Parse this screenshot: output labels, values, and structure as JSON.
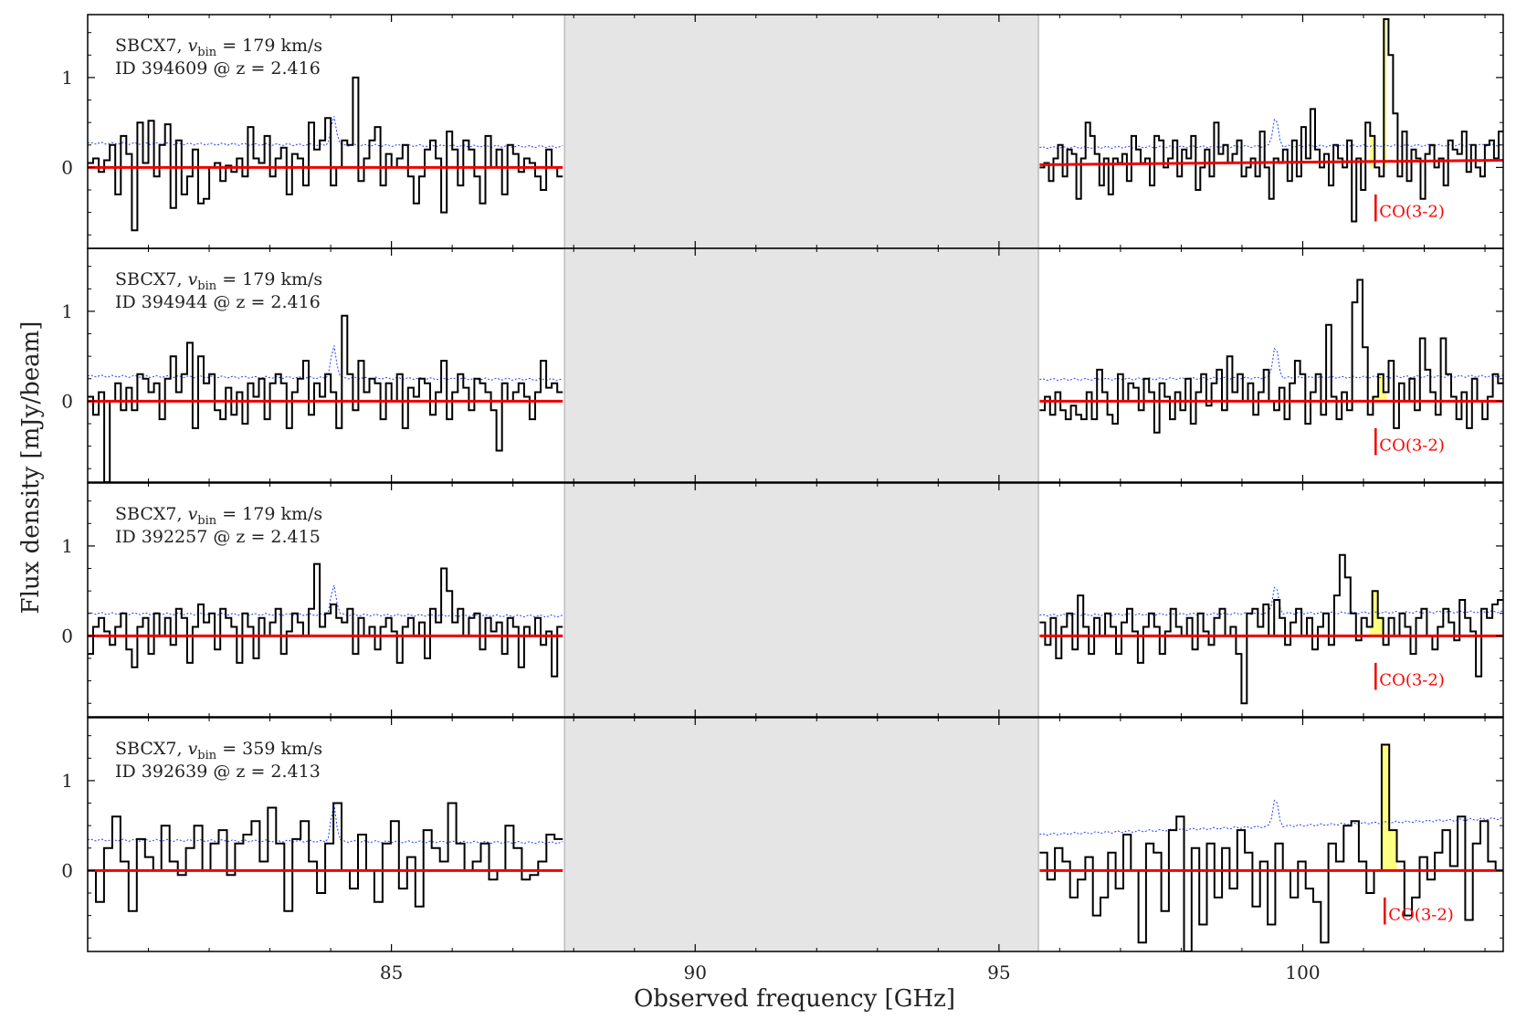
{
  "chart_data": {
    "type": "line",
    "xlabel": "Observed frequency [GHz]",
    "ylabel": "Flux density [mJy/beam]",
    "xlim": [
      80.0,
      103.3
    ],
    "ylim": [
      -0.9,
      1.7
    ],
    "xticks": [
      85,
      90,
      95,
      100
    ],
    "yticks": [
      0,
      1
    ],
    "gap_band": [
      87.85,
      95.65
    ],
    "co_label": "CO(3-2)",
    "colors": {
      "spectrum": "#000000",
      "noise": "#1f3fff",
      "baseline": "#ee0000",
      "line_fill": "#ffff80",
      "gap": "#e5e5e5"
    },
    "panels": [
      {
        "name_pre": "SBCX7, ",
        "vbin_sym": "v",
        "vbin_sub": "bin",
        "vbin_val": " = 179 km/s",
        "id_text": "ID 394609 @ z = 2.416",
        "co_freq": 101.2,
        "line_fill": [
          101.1,
          101.38
        ],
        "baseline_left": [
          0.0,
          0.0
        ],
        "baseline_right": [
          0.03,
          0.08
        ],
        "noise_left": [
          0.27,
          0.23
        ],
        "noise_right": [
          0.22,
          0.25
        ],
        "noise_bump": 0.55,
        "left": [
          0.05,
          0.1,
          -0.05,
          0.08,
          0.25,
          -0.3,
          0.35,
          0.15,
          -0.7,
          0.5,
          0.05,
          0.52,
          -0.1,
          0.25,
          0.48,
          -0.45,
          0.3,
          -0.3,
          -0.1,
          0.2,
          -0.4,
          -0.35,
          0.0,
          0.05,
          -0.15,
          0.02,
          -0.05,
          0.1,
          -0.1,
          0.45,
          0.1,
          0.05,
          0.35,
          -0.1,
          0.1,
          0.22,
          -0.3,
          0.15,
          0.1,
          -0.2,
          0.5,
          0.2,
          0.3,
          0.55,
          -0.2,
          0.0,
          0.3,
          0.25,
          1.0,
          -0.15,
          0.1,
          0.3,
          0.45,
          -0.2,
          0.15,
          0.0,
          0.1,
          0.25,
          -0.1,
          -0.4,
          -0.1,
          0.2,
          0.3,
          0.1,
          -0.5,
          0.4,
          0.2,
          -0.2,
          0.3,
          0.2,
          -0.1,
          -0.4,
          0.35,
          0.0,
          0.2,
          -0.3,
          0.25,
          0.15,
          -0.05,
          0.1,
          0.05,
          -0.1,
          -0.25,
          0.2,
          0.0,
          -0.1
        ],
        "right": [
          0.0,
          0.05,
          -0.15,
          0.1,
          0.25,
          -0.1,
          0.2,
          0.15,
          -0.35,
          0.1,
          0.5,
          0.35,
          0.15,
          -0.2,
          0.1,
          -0.3,
          0.1,
          0.05,
          0.15,
          -0.15,
          0.35,
          0.2,
          0.05,
          0.1,
          -0.2,
          0.35,
          0.3,
          0.0,
          0.1,
          0.3,
          -0.1,
          0.2,
          0.1,
          0.35,
          -0.25,
          0.0,
          0.2,
          -0.1,
          0.5,
          0.15,
          0.25,
          0.05,
          0.15,
          0.3,
          -0.1,
          0.0,
          0.1,
          -0.1,
          0.4,
          0.0,
          -0.35,
          0.1,
          0.05,
          0.2,
          -0.15,
          0.3,
          -0.1,
          0.45,
          0.1,
          0.65,
          0.2,
          0.0,
          0.15,
          -0.2,
          0.25,
          0.1,
          0.0,
          0.3,
          -0.6,
          0.1,
          -0.25,
          0.5,
          0.35,
          0.0,
          -0.1,
          1.65,
          1.25,
          0.6,
          -0.1,
          0.4,
          -0.15,
          0.2,
          0.1,
          -0.35,
          0.15,
          0.25,
          0.0,
          0.1,
          -0.2,
          0.3,
          0.2,
          0.15,
          0.4,
          -0.05,
          0.25,
          0.0,
          -0.1,
          0.25,
          0.3,
          0.1,
          0.4
        ]
      },
      {
        "name_pre": "SBCX7, ",
        "vbin_sym": "v",
        "vbin_sub": "bin",
        "vbin_val": " = 179 km/s",
        "id_text": "ID 394944 @ z = 2.416",
        "co_freq": 101.2,
        "line_fill": [
          101.1,
          101.38
        ],
        "baseline_left": [
          0.0,
          0.0
        ],
        "baseline_right": [
          0.0,
          0.0
        ],
        "noise_left": [
          0.28,
          0.24
        ],
        "noise_right": [
          0.24,
          0.28
        ],
        "noise_bump": 0.6,
        "left": [
          0.05,
          -0.15,
          0.1,
          -0.9,
          0.0,
          0.2,
          -0.1,
          0.15,
          -0.1,
          0.3,
          0.25,
          0.1,
          0.2,
          -0.2,
          0.25,
          0.5,
          0.1,
          0.3,
          0.65,
          -0.3,
          0.5,
          0.2,
          0.3,
          -0.1,
          -0.2,
          0.15,
          -0.15,
          0.1,
          -0.25,
          0.2,
          0.05,
          0.25,
          -0.2,
          0.2,
          0.3,
          0.2,
          -0.3,
          0.1,
          0.25,
          0.45,
          -0.15,
          0.2,
          0.05,
          0.3,
          0.1,
          -0.3,
          0.95,
          0.3,
          -0.1,
          0.45,
          0.1,
          0.25,
          0.2,
          -0.2,
          0.2,
          0.0,
          0.3,
          -0.3,
          0.15,
          0.05,
          0.25,
          0.2,
          -0.15,
          0.1,
          0.45,
          -0.2,
          0.1,
          0.3,
          0.15,
          -0.1,
          0.25,
          0.2,
          0.1,
          -0.1,
          -0.55,
          0.2,
          0.0,
          0.1,
          0.2,
          0.05,
          -0.2,
          0.1,
          0.45,
          0.15,
          0.2,
          0.1
        ],
        "right": [
          -0.1,
          0.05,
          -0.15,
          0.1,
          -0.1,
          -0.2,
          -0.05,
          -0.15,
          -0.2,
          0.1,
          -0.2,
          0.35,
          0.1,
          -0.15,
          -0.25,
          0.3,
          0.0,
          0.2,
          0.15,
          -0.1,
          0.25,
          0.1,
          -0.35,
          0.2,
          0.05,
          -0.2,
          0.1,
          -0.1,
          0.25,
          -0.25,
          0.1,
          0.3,
          -0.05,
          0.2,
          0.35,
          -0.1,
          0.5,
          0.1,
          0.3,
          0.0,
          0.2,
          -0.15,
          0.1,
          0.35,
          0.0,
          -0.1,
          0.15,
          -0.2,
          0.2,
          0.45,
          0.3,
          -0.25,
          0.1,
          0.3,
          -0.15,
          0.85,
          0.05,
          -0.2,
          0.1,
          -0.1,
          1.1,
          1.35,
          0.6,
          -0.15,
          0.05,
          0.3,
          0.1,
          0.45,
          -0.3,
          0.2,
          0.0,
          0.25,
          -0.1,
          0.7,
          0.35,
          0.1,
          -0.15,
          0.7,
          0.3,
          0.05,
          -0.2,
          0.1,
          -0.3,
          0.25,
          0.0,
          -0.2,
          0.05,
          0.3,
          0.2
        ]
      },
      {
        "name_pre": "SBCX7, ",
        "vbin_sym": "v",
        "vbin_sub": "bin",
        "vbin_val": " = 179 km/s",
        "id_text": "ID 392257 @ z = 2.415",
        "co_freq": 101.2,
        "line_fill": [
          101.1,
          101.38
        ],
        "baseline_left": [
          0.0,
          0.0
        ],
        "baseline_right": [
          0.0,
          0.0
        ],
        "noise_left": [
          0.25,
          0.22
        ],
        "noise_right": [
          0.23,
          0.27
        ],
        "noise_bump": 0.55,
        "left": [
          -0.2,
          0.1,
          0.2,
          0.05,
          -0.1,
          0.1,
          0.25,
          -0.15,
          -0.35,
          0.1,
          0.2,
          -0.2,
          0.25,
          0.0,
          0.2,
          -0.1,
          0.3,
          0.2,
          -0.3,
          0.1,
          0.35,
          0.15,
          0.25,
          -0.15,
          0.3,
          0.2,
          0.1,
          -0.3,
          0.25,
          0.1,
          -0.25,
          0.2,
          0.0,
          0.15,
          0.3,
          -0.2,
          0.05,
          0.25,
          0.15,
          0.0,
          0.3,
          0.8,
          0.1,
          0.25,
          0.35,
          0.2,
          0.15,
          0.3,
          -0.2,
          0.2,
          0.0,
          0.1,
          -0.15,
          0.1,
          0.2,
          0.05,
          -0.3,
          0.1,
          0.2,
          0.0,
          0.15,
          -0.25,
          0.3,
          0.15,
          0.75,
          0.5,
          0.15,
          0.3,
          0.0,
          0.2,
          0.25,
          -0.15,
          0.2,
          0.05,
          0.15,
          -0.2,
          0.2,
          0.1,
          -0.35,
          0.1,
          0.0,
          0.2,
          -0.1,
          0.05,
          -0.45,
          0.1
        ],
        "right": [
          0.15,
          -0.1,
          0.2,
          -0.25,
          0.1,
          0.25,
          -0.15,
          0.45,
          0.1,
          -0.2,
          0.2,
          0.0,
          0.25,
          0.1,
          -0.2,
          0.15,
          0.3,
          0.05,
          -0.3,
          0.1,
          0.25,
          0.1,
          -0.2,
          0.05,
          0.3,
          0.1,
          0.0,
          0.2,
          -0.15,
          0.25,
          0.05,
          -0.1,
          0.2,
          0.3,
          0.0,
          0.1,
          -0.2,
          -0.75,
          0.25,
          0.3,
          0.1,
          0.35,
          0.0,
          0.4,
          0.2,
          -0.1,
          0.15,
          0.3,
          0.0,
          0.2,
          -0.15,
          0.1,
          0.25,
          -0.1,
          0.45,
          0.9,
          0.65,
          0.25,
          -0.05,
          0.2,
          0.1,
          0.5,
          0.2,
          -0.1,
          0.2,
          0.0,
          0.25,
          0.1,
          -0.2,
          0.2,
          0.3,
          0.0,
          -0.15,
          0.1,
          0.3,
          0.15,
          -0.05,
          0.4,
          0.2,
          0.05,
          -0.45,
          0.3,
          0.2,
          0.35,
          0.4
        ]
      },
      {
        "name_pre": "SBCX7, ",
        "vbin_sym": "v",
        "vbin_sub": "bin",
        "vbin_val": " = 359 km/s",
        "id_text": "ID 392639 @ z = 2.413",
        "co_freq": 101.35,
        "line_fill": [
          101.2,
          101.55
        ],
        "baseline_left": [
          0.0,
          0.0
        ],
        "baseline_right": [
          0.0,
          0.0
        ],
        "noise_left": [
          0.34,
          0.31
        ],
        "noise_right": [
          0.4,
          0.58
        ],
        "noise_bump": 0.72,
        "left": [
          0.0,
          -0.35,
          0.25,
          0.6,
          0.1,
          -0.45,
          0.35,
          0.15,
          0.0,
          0.5,
          0.1,
          -0.05,
          0.25,
          0.5,
          0.0,
          0.3,
          0.45,
          -0.05,
          0.3,
          0.4,
          0.55,
          0.1,
          0.7,
          0.3,
          -0.45,
          0.35,
          0.55,
          0.1,
          -0.25,
          0.3,
          0.75,
          0.0,
          -0.2,
          0.4,
          0.0,
          -0.35,
          0.3,
          0.55,
          -0.2,
          0.15,
          -0.4,
          0.45,
          0.25,
          0.1,
          0.75,
          0.3,
          0.0,
          0.1,
          0.3,
          -0.1,
          0.0,
          0.5,
          0.25,
          -0.1,
          -0.05,
          0.1,
          0.4,
          0.35
        ],
        "right": [
          0.2,
          -0.1,
          0.25,
          0.1,
          -0.3,
          -0.1,
          0.15,
          -0.5,
          -0.3,
          0.2,
          -0.2,
          0.4,
          0.0,
          -0.8,
          0.3,
          0.2,
          -0.45,
          0.45,
          0.6,
          -0.9,
          0.25,
          -0.6,
          0.3,
          -0.3,
          0.25,
          -0.2,
          0.45,
          0.2,
          -0.4,
          0.1,
          -0.6,
          0.3,
          0.0,
          -0.3,
          0.1,
          -0.2,
          -0.35,
          -0.8,
          0.3,
          0.1,
          0.5,
          0.55,
          0.1,
          -0.25,
          0.0,
          1.4,
          0.45,
          0.1,
          -0.5,
          -0.3,
          0.15,
          -0.1,
          0.2,
          0.45,
          0.05,
          0.6,
          -0.55,
          0.3,
          0.55,
          0.1,
          0.0
        ]
      }
    ]
  }
}
